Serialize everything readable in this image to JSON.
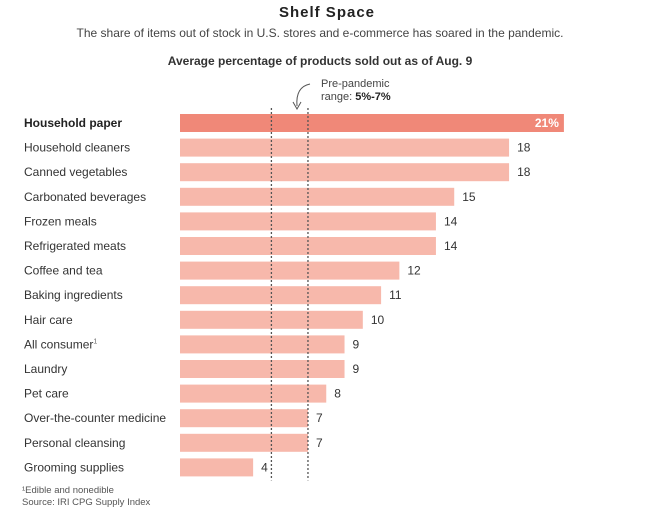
{
  "header": {
    "title": "Shelf Space",
    "subtitle": "The share of items out of stock in U.S. stores and e-commerce has soared in the pandemic."
  },
  "chart_heading": "Average percentage of products sold out as of Aug. 9",
  "annotation": {
    "line1": "Pre-pandemic",
    "line2_prefix": "range: ",
    "line2_value": "5%-7%"
  },
  "footnotes": {
    "note": "¹Edible and nonedible",
    "source": "Source: IRI CPG Supply Index"
  },
  "colors": {
    "highlight_bar": "#f08878",
    "bar": "#f7b8ab",
    "reference_line": "#555555"
  },
  "chart_data": {
    "type": "bar",
    "orientation": "horizontal",
    "categories": [
      "Household paper",
      "Household cleaners",
      "Canned vegetables",
      "Carbonated beverages",
      "Frozen meals",
      "Refrigerated meats",
      "Coffee and tea",
      "Baking ingredients",
      "Hair care",
      "All consumer",
      "Laundry",
      "Pet care",
      "Over-the-counter medicine",
      "Personal cleansing",
      "Grooming supplies"
    ],
    "category_superscripts": [
      "",
      "",
      "",
      "",
      "",
      "",
      "",
      "",
      "",
      "1",
      "",
      "",
      "",
      "",
      ""
    ],
    "values": [
      21,
      18,
      18,
      15,
      14,
      14,
      12,
      11,
      10,
      9,
      9,
      8,
      7,
      7,
      4
    ],
    "value_labels": [
      "21%",
      "18",
      "18",
      "15",
      "14",
      "14",
      "12",
      "11",
      "10",
      "9",
      "9",
      "8",
      "7",
      "7",
      "4"
    ],
    "highlight_index": 0,
    "reference_range": [
      5,
      7
    ],
    "xlim": [
      0,
      22
    ],
    "grid": false,
    "legend": "none"
  }
}
